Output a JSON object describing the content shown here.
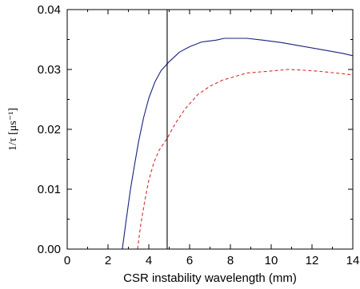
{
  "chart_data": {
    "type": "line",
    "xlabel": "CSR instability wavelength (mm)",
    "ylabel": "1/τ [μs⁻¹]",
    "xlim": [
      0,
      14
    ],
    "ylim": [
      0,
      0.04
    ],
    "xticks": [
      "0",
      "2",
      "4",
      "6",
      "8",
      "10",
      "12",
      "14"
    ],
    "yticks": [
      "0.00",
      "0.01",
      "0.02",
      "0.03",
      "0.04"
    ],
    "grid": false,
    "legend": "none",
    "vertical_line": {
      "x": 4.9,
      "color": "#000000"
    },
    "series": [
      {
        "style": "solid",
        "color": "#1a237e",
        "points": [
          [
            2.7,
            0.0
          ],
          [
            2.9,
            0.005
          ],
          [
            3.1,
            0.01
          ],
          [
            3.3,
            0.014
          ],
          [
            3.5,
            0.018
          ],
          [
            3.75,
            0.022
          ],
          [
            4.0,
            0.0252
          ],
          [
            4.3,
            0.0279
          ],
          [
            4.6,
            0.0298
          ],
          [
            5.0,
            0.0313
          ],
          [
            5.5,
            0.0329
          ],
          [
            6.0,
            0.0338
          ],
          [
            6.6,
            0.0346
          ],
          [
            7.3,
            0.0349
          ],
          [
            7.7,
            0.0352
          ],
          [
            8.8,
            0.0352
          ],
          [
            9.6,
            0.0349
          ],
          [
            10.5,
            0.0345
          ],
          [
            11.5,
            0.0339
          ],
          [
            12.5,
            0.0333
          ],
          [
            13.5,
            0.0327
          ],
          [
            14.0,
            0.0323
          ]
        ]
      },
      {
        "style": "dashed",
        "color": "#d32f2f",
        "points": [
          [
            3.45,
            0.0
          ],
          [
            3.6,
            0.004
          ],
          [
            3.8,
            0.008
          ],
          [
            4.0,
            0.0115
          ],
          [
            4.25,
            0.0145
          ],
          [
            4.5,
            0.0165
          ],
          [
            4.9,
            0.0185
          ],
          [
            5.3,
            0.021
          ],
          [
            5.8,
            0.0235
          ],
          [
            6.4,
            0.0258
          ],
          [
            7.0,
            0.0272
          ],
          [
            7.6,
            0.0282
          ],
          [
            8.2,
            0.0288
          ],
          [
            8.8,
            0.0294
          ],
          [
            9.5,
            0.0296
          ],
          [
            10.2,
            0.0298
          ],
          [
            10.8,
            0.03
          ],
          [
            11.5,
            0.0299
          ],
          [
            12.3,
            0.0297
          ],
          [
            13.2,
            0.0294
          ],
          [
            14.0,
            0.0291
          ]
        ]
      }
    ]
  }
}
